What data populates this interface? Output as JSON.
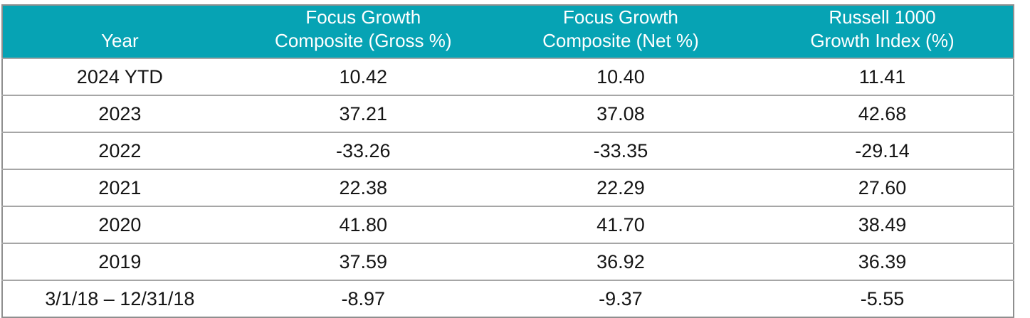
{
  "table": {
    "columns": [
      {
        "key": "year",
        "line1": "",
        "line2": "Year"
      },
      {
        "key": "gross",
        "line1": "Focus Growth",
        "line2": "Composite (Gross %)"
      },
      {
        "key": "net",
        "line1": "Focus Growth",
        "line2": "Composite (Net %)"
      },
      {
        "key": "index",
        "line1": "Russell 1000",
        "line2": "Growth Index (%)"
      }
    ],
    "rows": [
      {
        "year": "2024 YTD",
        "gross": "10.42",
        "net": "10.40",
        "index": "11.41"
      },
      {
        "year": "2023",
        "gross": "37.21",
        "net": "37.08",
        "index": "42.68"
      },
      {
        "year": "2022",
        "gross": "-33.26",
        "net": "-33.35",
        "index": "-29.14"
      },
      {
        "year": "2021",
        "gross": "22.38",
        "net": "22.29",
        "index": "27.60"
      },
      {
        "year": "2020",
        "gross": "41.80",
        "net": "41.70",
        "index": "38.49"
      },
      {
        "year": "2019",
        "gross": "37.59",
        "net": "36.92",
        "index": "36.39"
      },
      {
        "year": "3/1/18 – 12/31/18",
        "gross": "-8.97",
        "net": "-9.37",
        "index": "-5.55"
      }
    ],
    "colors": {
      "header_bg": "#06a3b4",
      "header_text": "#ffffff",
      "body_text": "#151515",
      "row_separator": "#a6a6a6",
      "outer_border": "#8f8f8f"
    }
  },
  "chart_data": {
    "type": "table",
    "title": "Focus Growth Composite vs Russell 1000 Growth Index — Annual Returns (%)",
    "columns": [
      "Year",
      "Focus Growth Composite (Gross %)",
      "Focus Growth Composite (Net %)",
      "Russell 1000 Growth Index (%)"
    ],
    "rows": [
      [
        "2024 YTD",
        10.42,
        10.4,
        11.41
      ],
      [
        "2023",
        37.21,
        37.08,
        42.68
      ],
      [
        "2022",
        -33.26,
        -33.35,
        -29.14
      ],
      [
        "2021",
        22.38,
        22.29,
        27.6
      ],
      [
        "2020",
        41.8,
        41.7,
        38.49
      ],
      [
        "2019",
        37.59,
        36.92,
        36.39
      ],
      [
        "3/1/18 – 12/31/18",
        -8.97,
        -9.37,
        -5.55
      ]
    ]
  }
}
